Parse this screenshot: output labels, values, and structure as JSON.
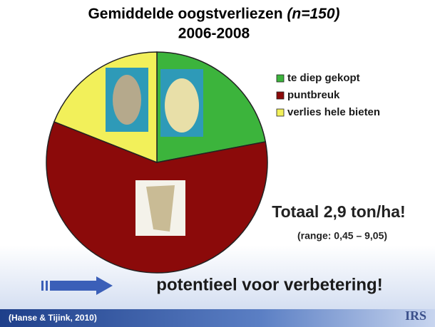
{
  "chart_data": {
    "type": "pie",
    "title": "Gemiddelde oogstverliezen",
    "title_note": "(n=150)",
    "subtitle": "2006-2008",
    "categories": [
      "te diep gekopt",
      "puntbreuk",
      "verlies hele bieten"
    ],
    "values": [
      22,
      59,
      19
    ],
    "colors": [
      "#3cb43c",
      "#8b0a0a",
      "#f2f05a"
    ],
    "legend": "top-right",
    "annotations": [
      "Totaal 2,9 ton/ha!",
      "(range: 0,45 – 9,05)",
      "potentieel voor verbetering!"
    ],
    "source": "(Hanse & Tijink, 2010)",
    "logo": "IRS"
  }
}
